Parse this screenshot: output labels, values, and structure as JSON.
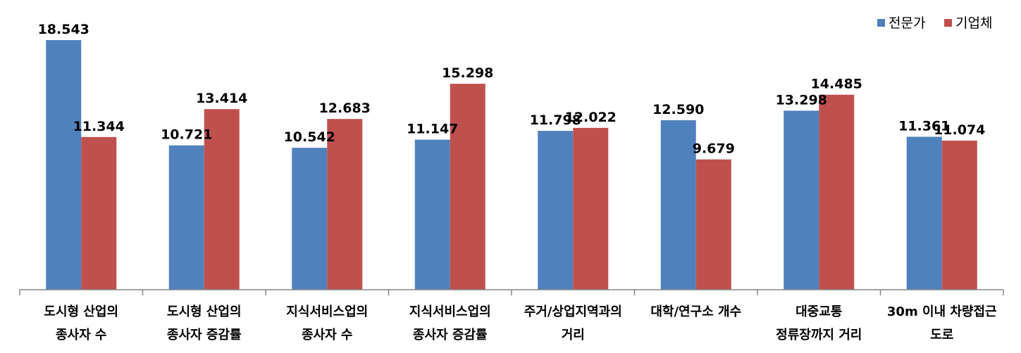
{
  "chart_data": {
    "type": "bar",
    "categories": [
      [
        "도시형 산업의",
        "종사자 수"
      ],
      [
        "도시형 산업의",
        "종사자 증감률"
      ],
      [
        "지식서비스업의",
        "종사자 수"
      ],
      [
        "지식서비스업의",
        "종사자 증감률"
      ],
      [
        "주거/상업지역과의",
        "거리"
      ],
      [
        "대학/연구소 개수"
      ],
      [
        "대중교통",
        "정류장까지 거리"
      ],
      [
        "30m 이내 차량접근",
        "도로"
      ]
    ],
    "series": [
      {
        "name": "전문가",
        "color": "#4f81bd",
        "values": [
          18.543,
          10.721,
          10.542,
          11.147,
          11.798,
          12.59,
          13.298,
          11.361
        ],
        "labels": [
          "18.543",
          "10.721",
          "10.542",
          "11.147",
          "11.798",
          "12.590",
          "13.298",
          "11.361"
        ]
      },
      {
        "name": "기업체",
        "color": "#c0504d",
        "values": [
          11.344,
          13.414,
          12.683,
          15.298,
          12.022,
          9.679,
          14.485,
          11.074
        ],
        "labels": [
          "11.344",
          "13.414",
          "12.683",
          "15.298",
          "12.022",
          "9.679",
          "14.485",
          "11.074"
        ]
      }
    ],
    "ylim": [
      0,
      18.543
    ],
    "grid": false,
    "legend_position": "top-right"
  }
}
